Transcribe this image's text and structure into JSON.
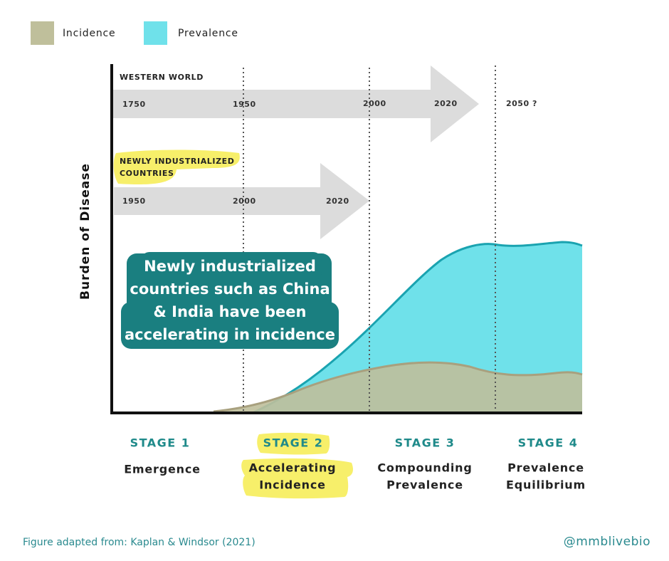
{
  "legend": [
    {
      "label": "Incidence",
      "color": "#bfbf9b"
    },
    {
      "label": "Prevalence",
      "color": "#6fe1ea"
    }
  ],
  "y_axis_label": "Burden of Disease",
  "timelines": {
    "western": {
      "label": [
        "WESTERN WORLD"
      ],
      "years": [
        "1750",
        "1950",
        "2000",
        "2020",
        "2050 ?"
      ]
    },
    "newly": {
      "label": [
        "NEWLY INDUSTRIALIZED",
        "COUNTRIES"
      ],
      "years": [
        "1950",
        "2000",
        "2020"
      ]
    }
  },
  "callout": [
    "Newly industrialized",
    "countries such as China",
    "& India have been",
    "accelerating in incidence"
  ],
  "stages": [
    {
      "number": "STAGE 1",
      "name": [
        "Emergence"
      ]
    },
    {
      "number": "STAGE 2",
      "name": [
        "Accelerating",
        "Incidence"
      ]
    },
    {
      "number": "STAGE 3",
      "name": [
        "Compounding",
        "Prevalence"
      ]
    },
    {
      "number": "STAGE 4",
      "name": [
        "Prevalence",
        "Equilibrium"
      ]
    }
  ],
  "footer": {
    "source": "Figure adapted from: Kaplan & Windsor (2021)",
    "handle": "@mmblivebio"
  }
}
